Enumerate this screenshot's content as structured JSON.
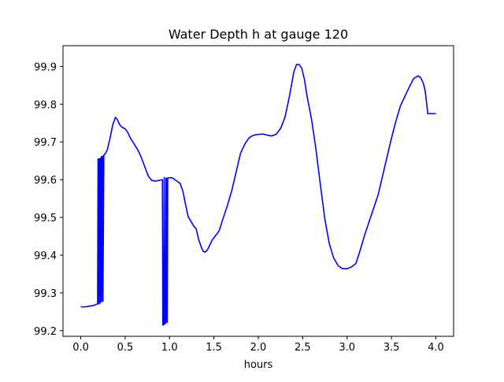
{
  "chart_data": {
    "type": "line",
    "title": "Water Depth h at gauge 120",
    "xlabel": "hours",
    "ylabel": "",
    "xlim": [
      -0.2,
      4.2
    ],
    "ylim": [
      99.185,
      99.955
    ],
    "xticks": [
      0.0,
      0.5,
      1.0,
      1.5,
      2.0,
      2.5,
      3.0,
      3.5,
      4.0
    ],
    "xtick_labels": [
      "0.0",
      "0.5",
      "1.0",
      "1.5",
      "2.0",
      "2.5",
      "3.0",
      "3.5",
      "4.0"
    ],
    "yticks": [
      99.2,
      99.3,
      99.4,
      99.5,
      99.6,
      99.7,
      99.8,
      99.9
    ],
    "ytick_labels": [
      "99.2",
      "99.3",
      "99.4",
      "99.5",
      "99.6",
      "99.7",
      "99.8",
      "99.9"
    ],
    "grid": false,
    "series": [
      {
        "color": "#0000ff",
        "x": [
          0.0,
          0.05,
          0.1,
          0.15,
          0.19,
          0.195,
          0.2,
          0.205,
          0.21,
          0.215,
          0.22,
          0.225,
          0.23,
          0.235,
          0.24,
          0.245,
          0.25,
          0.26,
          0.28,
          0.3,
          0.33,
          0.36,
          0.39,
          0.41,
          0.44,
          0.47,
          0.5,
          0.53,
          0.56,
          0.6,
          0.64,
          0.68,
          0.72,
          0.76,
          0.8,
          0.84,
          0.88,
          0.92,
          0.925,
          0.93,
          0.935,
          0.94,
          0.945,
          0.95,
          0.955,
          0.96,
          0.965,
          0.97,
          0.975,
          0.98,
          0.985,
          0.99,
          1.0,
          1.03,
          1.06,
          1.09,
          1.12,
          1.15,
          1.18,
          1.21,
          1.24,
          1.27,
          1.3,
          1.33,
          1.36,
          1.38,
          1.4,
          1.42,
          1.44,
          1.46,
          1.48,
          1.52,
          1.56,
          1.6,
          1.65,
          1.7,
          1.75,
          1.8,
          1.85,
          1.9,
          1.95,
          2.0,
          2.05,
          2.1,
          2.15,
          2.2,
          2.25,
          2.3,
          2.35,
          2.4,
          2.43,
          2.46,
          2.49,
          2.52,
          2.55,
          2.6,
          2.65,
          2.7,
          2.75,
          2.8,
          2.85,
          2.9,
          2.95,
          3.0,
          3.05,
          3.1,
          3.15,
          3.2,
          3.25,
          3.3,
          3.35,
          3.4,
          3.45,
          3.5,
          3.55,
          3.6,
          3.65,
          3.7,
          3.75,
          3.8,
          3.83,
          3.86,
          3.88,
          3.91,
          3.95,
          4.0
        ],
        "y": [
          99.263,
          99.263,
          99.265,
          99.267,
          99.271,
          99.655,
          99.655,
          99.271,
          99.655,
          99.655,
          99.273,
          99.655,
          99.66,
          99.277,
          99.662,
          99.662,
          99.278,
          99.665,
          99.67,
          99.68,
          99.71,
          99.745,
          99.765,
          99.76,
          99.745,
          99.738,
          99.735,
          99.725,
          99.71,
          99.695,
          99.68,
          99.66,
          99.635,
          99.61,
          99.598,
          99.596,
          99.598,
          99.6,
          99.215,
          99.215,
          99.217,
          99.606,
          99.218,
          99.218,
          99.22,
          99.604,
          99.604,
          99.222,
          99.222,
          99.604,
          99.605,
          99.605,
          99.605,
          99.605,
          99.6,
          99.595,
          99.59,
          99.57,
          99.535,
          99.502,
          99.49,
          99.478,
          99.47,
          99.44,
          99.42,
          99.41,
          99.408,
          99.412,
          99.42,
          99.43,
          99.44,
          99.452,
          99.465,
          99.495,
          99.53,
          99.57,
          99.62,
          99.67,
          99.695,
          99.712,
          99.718,
          99.72,
          99.721,
          99.718,
          99.716,
          99.72,
          99.735,
          99.765,
          99.82,
          99.885,
          99.905,
          99.905,
          99.895,
          99.865,
          99.82,
          99.76,
          99.68,
          99.585,
          99.495,
          99.43,
          99.392,
          99.372,
          99.364,
          99.364,
          99.369,
          99.378,
          99.415,
          99.455,
          99.49,
          99.525,
          99.56,
          99.61,
          99.66,
          99.71,
          99.755,
          99.795,
          99.82,
          99.845,
          99.868,
          99.875,
          99.87,
          99.855,
          99.835,
          99.775,
          99.775,
          99.775
        ]
      }
    ]
  }
}
